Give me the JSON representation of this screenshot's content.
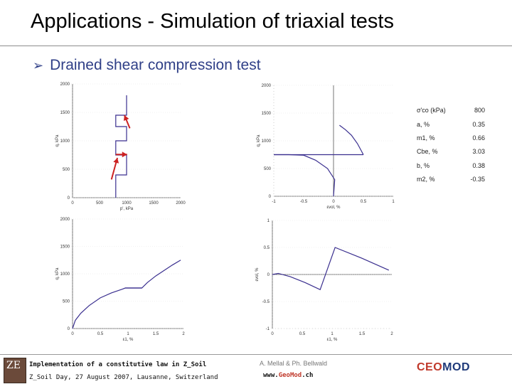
{
  "slide": {
    "title": "Applications - Simulation of triaxial tests",
    "bullet_glyph": "➢",
    "bullet": "Drained shear compression test"
  },
  "parameters": [
    {
      "name": "σ'co (kPa)",
      "value": "800"
    },
    {
      "name": "a, %",
      "value": "0.35"
    },
    {
      "name": "m1, %",
      "value": "0.66"
    },
    {
      "name": "Cbe, %",
      "value": "3.03"
    },
    {
      "name": "b, %",
      "value": "0.38"
    },
    {
      "name": "m2, %",
      "value": "-0.35"
    }
  ],
  "chart_data": [
    {
      "type": "line",
      "xlabel": "p', kPa",
      "ylabel": "q, kPa",
      "xlim": [
        0,
        2000
      ],
      "ylim": [
        0,
        2000
      ],
      "xticks": [
        "0",
        "500",
        "1000",
        "1500",
        "2000"
      ],
      "yticks": [
        "0",
        "500",
        "1000",
        "1500",
        "2000"
      ],
      "series": [
        {
          "x": [
            800,
            800,
            1000,
            1000,
            800,
            800,
            1000,
            1000,
            800,
            800,
            1000,
            1000
          ],
          "y": [
            0,
            400,
            400,
            750,
            750,
            1000,
            1000,
            1250,
            1250,
            1450,
            1450,
            1800
          ]
        }
      ],
      "arrows": [
        {
          "x": [
            720,
            830
          ],
          "y": [
            320,
            700
          ],
          "color": "#cc2222"
        },
        {
          "x": [
            800,
            1010
          ],
          "y": [
            760,
            760
          ],
          "color": "#cc2222"
        },
        {
          "x": [
            1060,
            960
          ],
          "y": [
            1220,
            1450
          ],
          "color": "#cc2222"
        }
      ]
    },
    {
      "type": "line",
      "xlabel": "εvol, %",
      "ylabel": "q, kPa",
      "xlim": [
        -1,
        1
      ],
      "ylim": [
        0,
        2000
      ],
      "xticks": [
        "-1",
        "-0.5",
        "0",
        "0.5",
        "1"
      ],
      "yticks": [
        "0",
        "500",
        "1000",
        "1500",
        "2000"
      ],
      "series": [
        {
          "x": [
            0,
            0.02,
            -0.1,
            -0.3,
            -0.5,
            -0.75,
            -1
          ],
          "y": [
            0,
            300,
            500,
            650,
            740,
            750,
            750
          ]
        },
        {
          "x": [
            -1,
            0.5
          ],
          "y": [
            750,
            750
          ]
        },
        {
          "x": [
            0.5,
            0.4,
            0.3,
            0.2,
            0.1
          ],
          "y": [
            750,
            950,
            1100,
            1200,
            1280
          ]
        }
      ]
    },
    {
      "type": "line",
      "xlabel": "ε1, %",
      "ylabel": "q, kPa",
      "xlim": [
        0,
        2
      ],
      "ylim": [
        0,
        2000
      ],
      "xticks": [
        "0",
        "0.5",
        "1",
        "1.5",
        "2"
      ],
      "yticks": [
        "0",
        "500",
        "1000",
        "1500",
        "2000"
      ],
      "series": [
        {
          "x": [
            0,
            0.05,
            0.15,
            0.3,
            0.5,
            0.7,
            0.9,
            0.95,
            1.25,
            1.35,
            1.5,
            1.65,
            1.8,
            1.95
          ],
          "y": [
            0,
            150,
            280,
            420,
            560,
            650,
            720,
            740,
            740,
            840,
            960,
            1060,
            1160,
            1250
          ]
        },
        {
          "x": [
            0.95,
            1.25
          ],
          "y": [
            740,
            740
          ]
        }
      ]
    },
    {
      "type": "line",
      "xlabel": "ε1, %",
      "ylabel": "εvol, %",
      "xlim": [
        0,
        2
      ],
      "ylim": [
        -1,
        1
      ],
      "xticks": [
        "0",
        "0.5",
        "1",
        "1.5",
        "2"
      ],
      "yticks": [
        "-1",
        "-0.5",
        "0",
        "0.5",
        "1"
      ],
      "series": [
        {
          "x": [
            0,
            0.1,
            0.3,
            0.55,
            0.8,
            1.05,
            1.5,
            1.95
          ],
          "y": [
            0,
            0.02,
            -0.04,
            -0.15,
            -0.28,
            0.5,
            0.3,
            0.08
          ]
        }
      ]
    }
  ],
  "footer": {
    "line1": "Implementation of a constitutive law in Z_Soil",
    "line2": "Z_Soil Day, 27 August 2007, Lausanne, Switzerland",
    "authors": "A. Mellal & Ph. Bellwald",
    "site_pre": "www.",
    "site_geo": "Geo",
    "site_mod": "Mod",
    "site_post": ".ch",
    "logo_left": "ZE",
    "logo_right_a": "CEO",
    "logo_right_b": "MOD"
  },
  "colors": {
    "title": "#000000",
    "bullet": "#2f3f87",
    "curve": "#3a2f8f",
    "arrow": "#cc2222",
    "logo_a": "#c0392b",
    "logo_b": "#1f3a7a"
  }
}
